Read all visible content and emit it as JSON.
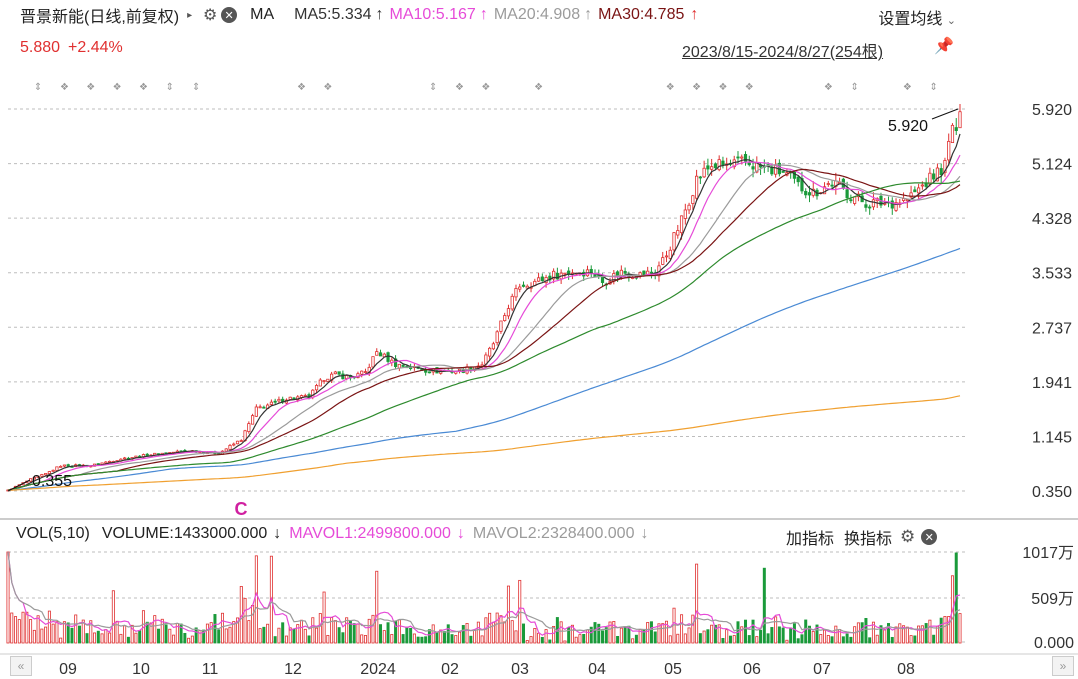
{
  "header": {
    "title": "晋景新能(日线,前复权)",
    "ma_label": "MA",
    "ma5": "MA5:5.334",
    "ma10": "MA10:5.167",
    "ma20": "MA20:4.908",
    "ma30": "MA30:4.785",
    "settings": "设置均线",
    "price": "5.880",
    "change": "+2.44%",
    "range": "2023/8/15-2024/8/27(254根)"
  },
  "volume_header": {
    "vol": "VOL(5,10)",
    "volume": "VOLUME:1433000.000",
    "mavol1": "MAVOL1:2499800.000",
    "mavol2": "MAVOL2:2328400.000",
    "add_indicator": "加指标",
    "switch_indicator": "换指标"
  },
  "colors": {
    "up": "#e03030",
    "down": "#1a9a3a",
    "ma5": "#333333",
    "ma10": "#e64bd8",
    "ma20": "#9b9b9b",
    "ma30": "#7a1414",
    "ma60": "#2d8a2d",
    "ma120": "#4a8ad4",
    "ma250": "#f0a030"
  },
  "chart_data": {
    "type": "candlestick",
    "price_ticks": [
      "5.920",
      "5.124",
      "4.328",
      "3.533",
      "2.737",
      "1.941",
      "1.145",
      "0.350"
    ],
    "volume_ticks": [
      "1017万",
      "509万",
      "0.000"
    ],
    "x_labels": [
      "09",
      "10",
      "11",
      "12",
      "2024",
      "02",
      "03",
      "04",
      "05",
      "06",
      "07",
      "08"
    ],
    "annotations": {
      "high": "5.920",
      "low": "0.355",
      "marker": "C"
    },
    "close_path": [
      [
        0,
        0.36
      ],
      [
        6,
        0.52
      ],
      [
        10,
        0.6
      ],
      [
        14,
        0.72
      ],
      [
        22,
        0.72
      ],
      [
        30,
        0.82
      ],
      [
        38,
        0.88
      ],
      [
        48,
        0.94
      ],
      [
        56,
        0.9
      ],
      [
        62,
        1.1
      ],
      [
        66,
        1.55
      ],
      [
        70,
        1.62
      ],
      [
        74,
        1.7
      ],
      [
        80,
        1.72
      ],
      [
        84,
        2.0
      ],
      [
        87,
        2.05
      ],
      [
        91,
        2.0
      ],
      [
        95,
        2.08
      ],
      [
        98,
        2.38
      ],
      [
        103,
        2.2
      ],
      [
        107,
        2.15
      ],
      [
        113,
        2.1
      ],
      [
        120,
        2.1
      ],
      [
        126,
        2.2
      ],
      [
        129,
        2.5
      ],
      [
        133,
        3.05
      ],
      [
        136,
        3.35
      ],
      [
        140,
        3.4
      ],
      [
        145,
        3.5
      ],
      [
        150,
        3.55
      ],
      [
        155,
        3.55
      ],
      [
        158,
        3.4
      ],
      [
        163,
        3.55
      ],
      [
        168,
        3.5
      ],
      [
        172,
        3.55
      ],
      [
        175,
        3.8
      ],
      [
        179,
        4.3
      ],
      [
        183,
        4.9
      ],
      [
        187,
        5.1
      ],
      [
        191,
        5.1
      ],
      [
        196,
        5.15
      ],
      [
        201,
        5.05
      ],
      [
        206,
        5.0
      ],
      [
        210,
        4.8
      ],
      [
        214,
        4.7
      ],
      [
        219,
        4.85
      ],
      [
        223,
        4.7
      ],
      [
        228,
        4.55
      ],
      [
        234,
        4.55
      ],
      [
        239,
        4.6
      ],
      [
        243,
        4.8
      ],
      [
        246,
        4.95
      ],
      [
        249,
        5.1
      ],
      [
        251,
        5.7
      ],
      [
        252,
        5.5
      ],
      [
        253,
        5.88
      ]
    ]
  }
}
